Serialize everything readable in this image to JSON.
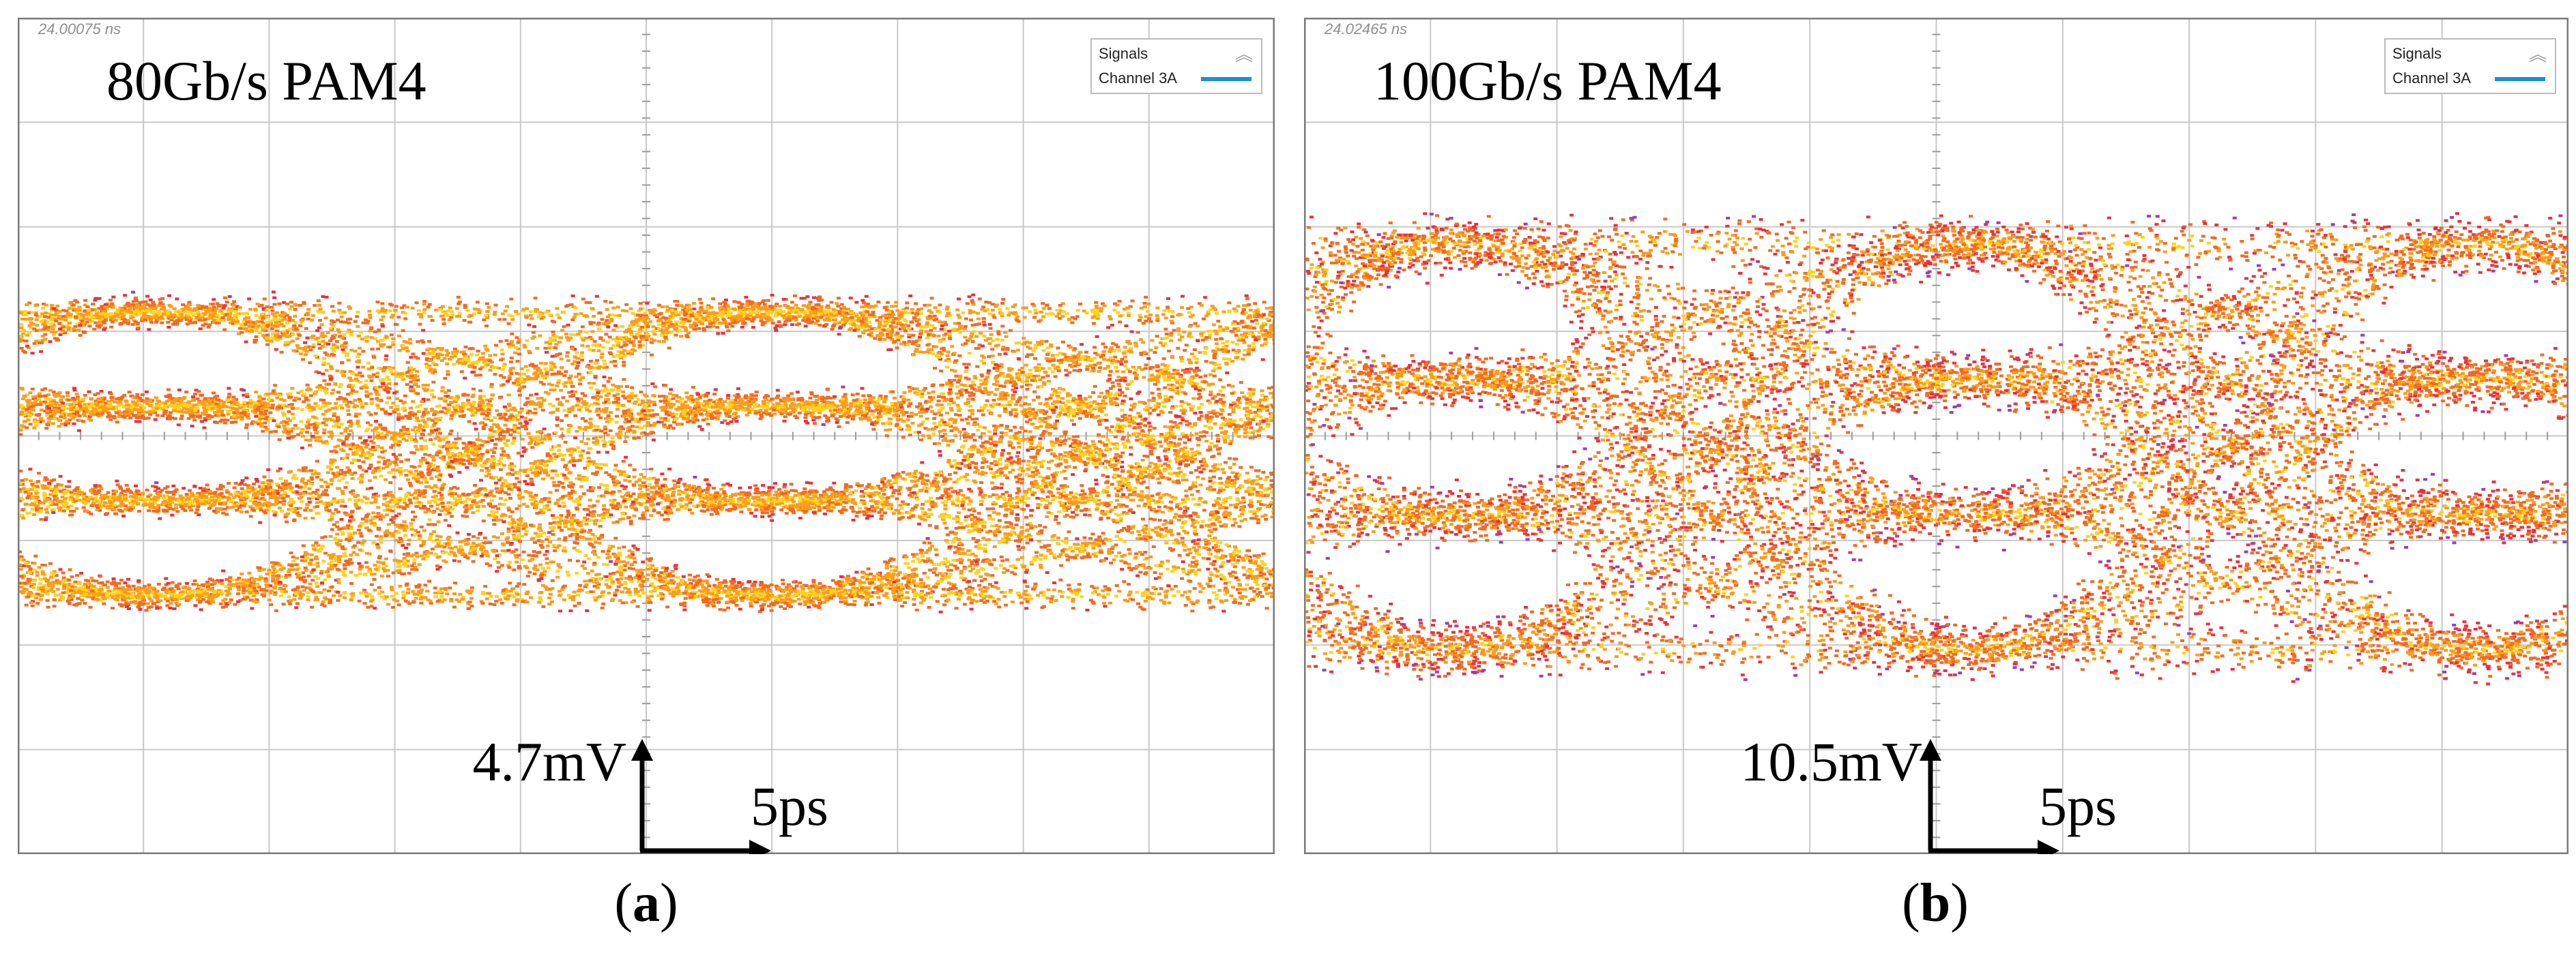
{
  "chart_data": [
    {
      "type": "eye-diagram",
      "panel": "a",
      "caption_letter": "a",
      "title": "80Gb/s PAM4",
      "timestamp": "24.00075 ns",
      "legend": {
        "title": "Signals",
        "entries": [
          {
            "label": "Channel 3A",
            "color": "#1c8ed8"
          }
        ]
      },
      "scale": {
        "vertical": "4.7mV",
        "horizontal": "5ps"
      },
      "levels": 4,
      "grid": {
        "cols": 10,
        "rows": 8
      },
      "colors": [
        "#e8313f",
        "#f26a22",
        "#fb9c1b",
        "#ffd21c",
        "#9c3fb5"
      ]
    },
    {
      "type": "eye-diagram",
      "panel": "b",
      "caption_letter": "b",
      "title": "100Gb/s PAM4",
      "timestamp": "24.02465 ns",
      "legend": {
        "title": "Signals",
        "entries": [
          {
            "label": "Channel 3A",
            "color": "#1c8ed8"
          }
        ]
      },
      "scale": {
        "vertical": "10.5mV",
        "horizontal": "5ps"
      },
      "levels": 4,
      "grid": {
        "cols": 10,
        "rows": 8
      },
      "colors": [
        "#e8313f",
        "#f26a22",
        "#fb9c1b",
        "#ffd21c",
        "#9c3fb5"
      ]
    }
  ]
}
